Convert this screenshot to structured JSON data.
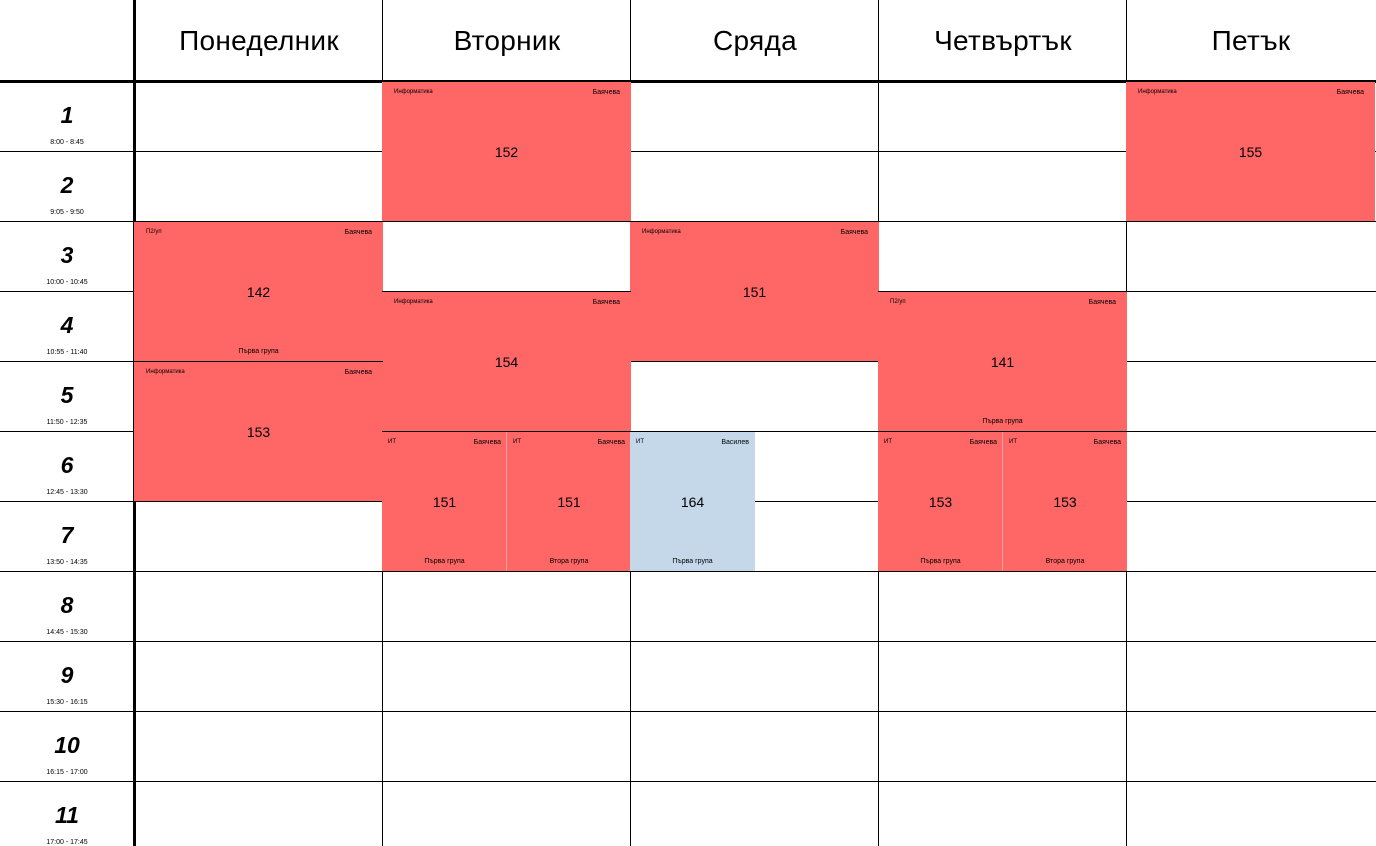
{
  "days": [
    "Понеделник",
    "Вторник",
    "Сряда",
    "Четвъртък",
    "Петък"
  ],
  "periods": [
    {
      "num": "1",
      "time": "8:00 - 8:45"
    },
    {
      "num": "2",
      "time": "9:05 - 9:50"
    },
    {
      "num": "3",
      "time": "10:00 - 10:45"
    },
    {
      "num": "4",
      "time": "10:55 - 11:40"
    },
    {
      "num": "5",
      "time": "11:50 - 12:35"
    },
    {
      "num": "6",
      "time": "12:45 - 13:30"
    },
    {
      "num": "7",
      "time": "13:50 - 14:35"
    },
    {
      "num": "8",
      "time": "14:45 - 15:30"
    },
    {
      "num": "9",
      "time": "15:30 - 16:15"
    },
    {
      "num": "10",
      "time": "16:15 - 17:00"
    },
    {
      "num": "11",
      "time": "17:00 - 17:45"
    }
  ],
  "colors": {
    "lesson": "#ff6666",
    "lesson_other_teacher": "#c4d8ea",
    "grid_line": "#000000"
  },
  "lessons": [
    {
      "day": 1,
      "start": 1,
      "end": 2,
      "subject": "Информатика",
      "teacher": "Баячева",
      "room": "152",
      "group": "",
      "slot": "full",
      "color": "red"
    },
    {
      "day": 4,
      "start": 1,
      "end": 2,
      "subject": "Информатика",
      "teacher": "Баячева",
      "room": "155",
      "group": "",
      "slot": "full",
      "color": "red"
    },
    {
      "day": 0,
      "start": 3,
      "end": 4,
      "subject": "П2/уп",
      "teacher": "Баячева",
      "room": "142",
      "group": "Първа група",
      "slot": "full",
      "color": "red"
    },
    {
      "day": 2,
      "start": 3,
      "end": 4,
      "subject": "Информатика",
      "teacher": "Баячева",
      "room": "151",
      "group": "",
      "slot": "full",
      "color": "red"
    },
    {
      "day": 1,
      "start": 4,
      "end": 5,
      "subject": "Информатика",
      "teacher": "Баячева",
      "room": "154",
      "group": "",
      "slot": "full",
      "color": "red"
    },
    {
      "day": 3,
      "start": 4,
      "end": 5,
      "subject": "П2/уп",
      "teacher": "Баячева",
      "room": "141",
      "group": "Първа група",
      "slot": "full",
      "color": "red"
    },
    {
      "day": 0,
      "start": 5,
      "end": 6,
      "subject": "Информатика",
      "teacher": "Баячева",
      "room": "153",
      "group": "",
      "slot": "full",
      "color": "red"
    },
    {
      "day": 1,
      "start": 6,
      "end": 7,
      "subject": "ИТ",
      "teacher": "Баячева",
      "room": "151",
      "group": "Първа група",
      "slot": "left",
      "color": "red"
    },
    {
      "day": 1,
      "start": 6,
      "end": 7,
      "subject": "ИТ",
      "teacher": "Баячева",
      "room": "151",
      "group": "Втора група",
      "slot": "right",
      "color": "red"
    },
    {
      "day": 2,
      "start": 6,
      "end": 7,
      "subject": "ИТ",
      "teacher": "Василев",
      "room": "164",
      "group": "Първа група",
      "slot": "left",
      "color": "blue"
    },
    {
      "day": 3,
      "start": 6,
      "end": 7,
      "subject": "ИТ",
      "teacher": "Баячева",
      "room": "153",
      "group": "Първа група",
      "slot": "left",
      "color": "red"
    },
    {
      "day": 3,
      "start": 6,
      "end": 7,
      "subject": "ИТ",
      "teacher": "Баячева",
      "room": "153",
      "group": "Втора група",
      "slot": "right",
      "color": "red"
    }
  ]
}
